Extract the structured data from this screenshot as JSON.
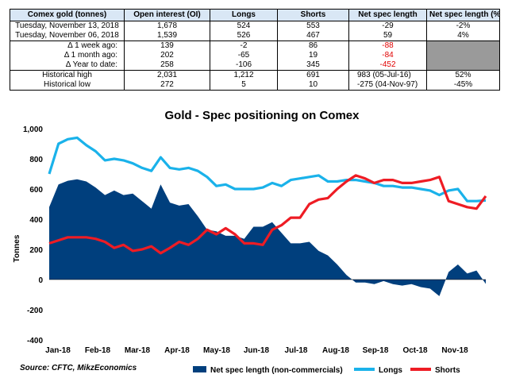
{
  "table": {
    "headers": [
      "Comex gold (tonnes)",
      "Open interest (OI)",
      "Longs",
      "Shorts",
      "Net spec length",
      "Net spec length (% OI)"
    ],
    "rows": [
      {
        "label": "Tuesday, November 13, 2018",
        "oi": "1,678",
        "longs": "524",
        "shorts": "553",
        "net": "-29",
        "pct": "-2%"
      },
      {
        "label": "Tuesday, November 06, 2018",
        "oi": "1,539",
        "longs": "526",
        "shorts": "467",
        "net": "59",
        "pct": "4%"
      },
      {
        "label": "Δ 1 week ago:",
        "oi": "139",
        "longs": "-2",
        "shorts": "86",
        "net": "-88",
        "pct": ""
      },
      {
        "label": "Δ 1 month ago:",
        "oi": "202",
        "longs": "-65",
        "shorts": "19",
        "net": "-84",
        "pct": ""
      },
      {
        "label": "Δ Year to date:",
        "oi": "258",
        "longs": "-106",
        "shorts": "345",
        "net": "-452",
        "pct": ""
      },
      {
        "label": "Historical high",
        "oi": "2,031",
        "longs": "1,212",
        "shorts": "691",
        "net": "983  (05-Jul-16)",
        "pct": "52%"
      },
      {
        "label": "Historical low",
        "oi": "272",
        "longs": "5",
        "shorts": "10",
        "net": "-275  (04-Nov-97)",
        "pct": "-45%"
      }
    ]
  },
  "source": "Source: CFTC, MikzEconomics",
  "colors": {
    "net": "#003f7d",
    "longs": "#1ab2ea",
    "shorts": "#ee1c24",
    "header_bg": "#d9e7f5",
    "negative": "#e00000"
  },
  "chart_data": {
    "type": "area",
    "title": "Gold - Spec positioning on Comex",
    "ylabel": "Tonnes",
    "xlabel": "",
    "ylim": [
      -400,
      1000
    ],
    "yticks": [
      -400,
      -200,
      0,
      200,
      400,
      600,
      800,
      1000
    ],
    "ytick_labels": [
      "-400",
      "-200",
      "0",
      "200",
      "400",
      "600",
      "800",
      "1,000"
    ],
    "xtick_labels": [
      "Jan-18",
      "Feb-18",
      "Mar-18",
      "Apr-18",
      "May-18",
      "Jun-18",
      "Jul-18",
      "Aug-18",
      "Sep-18",
      "Oct-18",
      "Nov-18"
    ],
    "grid": false,
    "legend": "bottom",
    "series": [
      {
        "name": "Net spec length (non-commercials)",
        "type": "area",
        "values": [
          480,
          630,
          655,
          665,
          650,
          610,
          560,
          590,
          560,
          570,
          520,
          470,
          630,
          510,
          490,
          500,
          420,
          330,
          320,
          290,
          290,
          270,
          350,
          350,
          380,
          310,
          240,
          240,
          250,
          190,
          160,
          100,
          30,
          -20,
          -20,
          -30,
          -10,
          -30,
          -40,
          -30,
          -50,
          -60,
          -110,
          50,
          100,
          40,
          60,
          -29
        ]
      },
      {
        "name": "Longs",
        "type": "line",
        "values": [
          700,
          900,
          930,
          940,
          890,
          850,
          790,
          800,
          790,
          770,
          740,
          720,
          810,
          740,
          730,
          740,
          720,
          680,
          620,
          630,
          600,
          600,
          600,
          610,
          640,
          620,
          660,
          670,
          680,
          690,
          650,
          650,
          660,
          660,
          650,
          640,
          620,
          620,
          610,
          610,
          600,
          590,
          560,
          590,
          600,
          520,
          520,
          524
        ]
      },
      {
        "name": "Shorts",
        "type": "line",
        "values": [
          240,
          260,
          280,
          280,
          280,
          270,
          250,
          210,
          230,
          190,
          200,
          220,
          175,
          210,
          250,
          230,
          270,
          330,
          300,
          340,
          300,
          240,
          240,
          230,
          330,
          360,
          410,
          410,
          500,
          530,
          540,
          600,
          650,
          690,
          670,
          640,
          660,
          660,
          640,
          640,
          650,
          660,
          680,
          520,
          500,
          480,
          470,
          553
        ]
      }
    ]
  }
}
